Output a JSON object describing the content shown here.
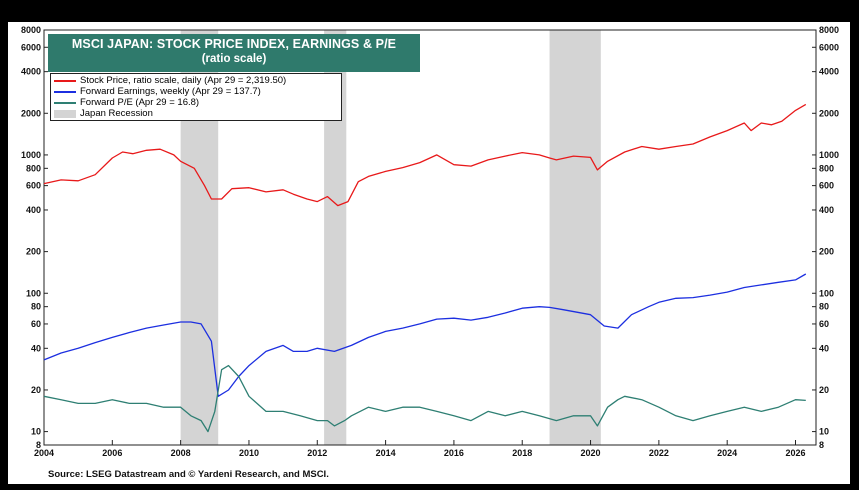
{
  "title": "MSCI JAPAN: STOCK PRICE INDEX, EARNINGS & P/E",
  "subtitle": "(ratio scale)",
  "legend": [
    {
      "label": "Stock Price, ratio scale, daily (Apr 29 = 2,319.50)",
      "color": "#e8191a",
      "kind": "line"
    },
    {
      "label": "Forward Earnings, weekly (Apr 29 = 137.7)",
      "color": "#1c2fe0",
      "kind": "line"
    },
    {
      "label": "Forward P/E (Apr 29 = 16.8)",
      "color": "#2e7f73",
      "kind": "line"
    },
    {
      "label": "Japan Recession",
      "color": "#d4d4d4",
      "kind": "box"
    }
  ],
  "source": "Source: LSEG Datastream and © Yardeni Research, and MSCI.",
  "chart_data": {
    "type": "line",
    "y_scale": "log",
    "ylim": [
      8,
      8000
    ],
    "xlim": [
      2004,
      2026.6
    ],
    "x_ticks": [
      "2004",
      "2006",
      "2008",
      "2010",
      "2012",
      "2014",
      "2016",
      "2018",
      "2020",
      "2022",
      "2024",
      "2026"
    ],
    "y_ticks_left": [
      "8000",
      "6000",
      "4000",
      "2000",
      "1000",
      "800",
      "600",
      "400",
      "200",
      "100",
      "80",
      "60",
      "40",
      "20",
      "10",
      "8"
    ],
    "y_ticks_right": [
      "8000",
      "6000",
      "4000",
      "2000",
      "1000",
      "800",
      "600",
      "400",
      "200",
      "100",
      "80",
      "60",
      "40",
      "20",
      "10",
      "8"
    ],
    "recessions": [
      [
        2008.0,
        2009.1
      ],
      [
        2012.2,
        2012.85
      ],
      [
        2018.8,
        2020.3
      ]
    ],
    "series": [
      {
        "name": "Stock Price",
        "color": "#e8191a",
        "x": [
          2004.0,
          2004.5,
          2005.0,
          2005.5,
          2006.0,
          2006.3,
          2006.6,
          2007.0,
          2007.4,
          2007.8,
          2008.0,
          2008.4,
          2008.7,
          2008.9,
          2009.2,
          2009.5,
          2010.0,
          2010.5,
          2011.0,
          2011.3,
          2011.7,
          2012.0,
          2012.3,
          2012.6,
          2012.9,
          2013.2,
          2013.5,
          2014.0,
          2014.5,
          2015.0,
          2015.5,
          2016.0,
          2016.5,
          2017.0,
          2017.5,
          2018.0,
          2018.5,
          2018.8,
          2019.0,
          2019.5,
          2020.0,
          2020.2,
          2020.5,
          2021.0,
          2021.5,
          2022.0,
          2022.5,
          2023.0,
          2023.5,
          2024.0,
          2024.5,
          2024.7,
          2025.0,
          2025.3,
          2025.6,
          2026.0,
          2026.3
        ],
        "values": [
          620,
          660,
          650,
          720,
          950,
          1050,
          1020,
          1080,
          1100,
          1000,
          900,
          800,
          600,
          480,
          480,
          570,
          580,
          540,
          560,
          520,
          480,
          460,
          500,
          430,
          460,
          640,
          700,
          760,
          810,
          880,
          1000,
          850,
          830,
          920,
          980,
          1040,
          1000,
          950,
          920,
          980,
          960,
          780,
          900,
          1050,
          1150,
          1100,
          1150,
          1200,
          1350,
          1500,
          1700,
          1500,
          1700,
          1650,
          1750,
          2100,
          2319
        ]
      },
      {
        "name": "Forward Earnings",
        "color": "#1c2fe0",
        "x": [
          2004.0,
          2004.5,
          2005.0,
          2005.5,
          2006.0,
          2006.5,
          2007.0,
          2007.5,
          2008.0,
          2008.3,
          2008.6,
          2008.9,
          2009.1,
          2009.4,
          2009.7,
          2010.0,
          2010.5,
          2011.0,
          2011.3,
          2011.7,
          2012.0,
          2012.5,
          2013.0,
          2013.5,
          2014.0,
          2014.5,
          2015.0,
          2015.5,
          2016.0,
          2016.5,
          2017.0,
          2017.5,
          2018.0,
          2018.5,
          2018.8,
          2019.2,
          2019.6,
          2020.0,
          2020.4,
          2020.8,
          2021.2,
          2021.7,
          2022.0,
          2022.5,
          2023.0,
          2023.5,
          2024.0,
          2024.5,
          2025.0,
          2025.5,
          2026.0,
          2026.3
        ],
        "values": [
          33,
          37,
          40,
          44,
          48,
          52,
          56,
          59,
          62,
          62,
          60,
          45,
          18,
          20,
          25,
          30,
          38,
          42,
          38,
          38,
          40,
          38,
          42,
          48,
          53,
          56,
          60,
          65,
          66,
          64,
          67,
          72,
          78,
          80,
          79,
          76,
          73,
          70,
          58,
          56,
          70,
          80,
          86,
          92,
          93,
          97,
          102,
          110,
          115,
          120,
          125,
          137.7
        ]
      },
      {
        "name": "Forward P/E",
        "color": "#2e7f73",
        "x": [
          2004.0,
          2004.5,
          2005.0,
          2005.5,
          2006.0,
          2006.5,
          2007.0,
          2007.5,
          2008.0,
          2008.3,
          2008.6,
          2008.8,
          2009.0,
          2009.2,
          2009.4,
          2009.7,
          2010.0,
          2010.5,
          2011.0,
          2011.5,
          2012.0,
          2012.3,
          2012.5,
          2012.8,
          2013.0,
          2013.5,
          2014.0,
          2014.5,
          2015.0,
          2015.5,
          2016.0,
          2016.5,
          2017.0,
          2017.5,
          2018.0,
          2018.5,
          2019.0,
          2019.5,
          2020.0,
          2020.2,
          2020.5,
          2020.8,
          2021.0,
          2021.5,
          2022.0,
          2022.5,
          2023.0,
          2023.5,
          2024.0,
          2024.5,
          2025.0,
          2025.5,
          2026.0,
          2026.3
        ],
        "values": [
          18,
          17,
          16,
          16,
          17,
          16,
          16,
          15,
          15,
          13,
          12,
          10,
          14,
          28,
          30,
          25,
          18,
          14,
          14,
          13,
          12,
          12,
          11,
          12,
          13,
          15,
          14,
          15,
          15,
          14,
          13,
          12,
          14,
          13,
          14,
          13,
          12,
          13,
          13,
          11,
          15,
          17,
          18,
          17,
          15,
          13,
          12,
          13,
          14,
          15,
          14,
          15,
          17,
          16.8
        ]
      }
    ]
  }
}
